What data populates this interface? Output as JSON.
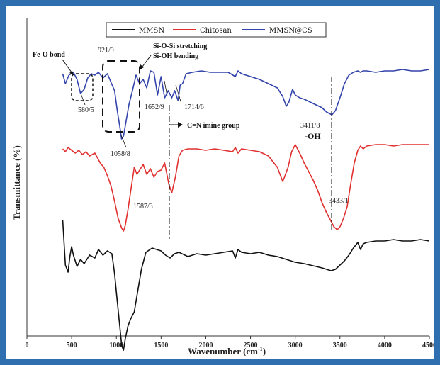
{
  "chart_data": {
    "type": "line",
    "xlabel": "Wavenumber (cm",
    "xlabel_sup": "-1",
    "xlabel_close": ")",
    "ylabel": "Transmittance (%)",
    "xlim": [
      0,
      4500
    ],
    "x_ticks": [
      "0",
      "500",
      "1000",
      "1500",
      "2000",
      "2500",
      "3000",
      "3500",
      "4000",
      "4500"
    ],
    "legend_position": "top",
    "grid": false,
    "series": [
      {
        "name": "MMSN",
        "color": "#111111",
        "x": [
          400,
          430,
          460,
          480,
          500,
          520,
          560,
          600,
          640,
          700,
          760,
          800,
          850,
          900,
          950,
          980,
          1000,
          1030,
          1060,
          1080,
          1100,
          1130,
          1160,
          1200,
          1240,
          1280,
          1330,
          1400,
          1500,
          1550,
          1600,
          1650,
          1700,
          1800,
          1900,
          2000,
          2100,
          2200,
          2300,
          2330,
          2360,
          2400,
          2500,
          2600,
          2700,
          2800,
          2900,
          3000,
          3100,
          3200,
          3300,
          3400,
          3450,
          3500,
          3550,
          3600,
          3650,
          3700,
          3730,
          3760,
          3800,
          3900,
          4000,
          4100,
          4200,
          4300,
          4400,
          4500
        ],
        "y": [
          10,
          74,
          84,
          62,
          48,
          60,
          76,
          66,
          72,
          60,
          64,
          52,
          60,
          54,
          58,
          86,
          112,
          150,
          188,
          194,
          178,
          160,
          150,
          140,
          110,
          80,
          56,
          50,
          54,
          60,
          64,
          58,
          56,
          62,
          58,
          60,
          58,
          56,
          54,
          64,
          52,
          56,
          58,
          56,
          60,
          62,
          66,
          70,
          72,
          75,
          78,
          82,
          80,
          74,
          68,
          60,
          50,
          42,
          52,
          44,
          42,
          40,
          40,
          38,
          40,
          40,
          38,
          40
        ]
      },
      {
        "name": "Chitosan",
        "color": "#e03030",
        "x": [
          400,
          430,
          460,
          500,
          540,
          580,
          620,
          660,
          700,
          760,
          820,
          860,
          900,
          940,
          980,
          1020,
          1060,
          1080,
          1100,
          1130,
          1160,
          1200,
          1230,
          1260,
          1300,
          1340,
          1380,
          1420,
          1460,
          1500,
          1540,
          1587,
          1620,
          1660,
          1700,
          1740,
          1800,
          1900,
          2000,
          2100,
          2200,
          2300,
          2330,
          2360,
          2400,
          2500,
          2600,
          2700,
          2800,
          2860,
          2880,
          2920,
          2960,
          3000,
          3050,
          3100,
          3150,
          3200,
          3250,
          3300,
          3350,
          3400,
          3433,
          3470,
          3500,
          3540,
          3580,
          3620,
          3660,
          3700,
          3730,
          3760,
          3800,
          3900,
          4000,
          4100,
          4200,
          4300,
          4400,
          4500
        ],
        "y": [
          10,
          14,
          8,
          12,
          16,
          12,
          18,
          14,
          20,
          16,
          30,
          36,
          48,
          62,
          84,
          108,
          122,
          126,
          118,
          96,
          70,
          36,
          46,
          40,
          32,
          46,
          38,
          50,
          42,
          40,
          30,
          60,
          72,
          50,
          20,
          12,
          10,
          10,
          12,
          10,
          12,
          14,
          8,
          16,
          10,
          12,
          14,
          20,
          36,
          56,
          50,
          36,
          14,
          4,
          16,
          30,
          42,
          54,
          68,
          86,
          100,
          112,
          120,
          124,
          120,
          108,
          92,
          60,
          30,
          12,
          6,
          10,
          6,
          4,
          4,
          6,
          4,
          4,
          4,
          4
        ]
      },
      {
        "name": "MMSN@CS",
        "color": "#3344aa",
        "x": [
          400,
          430,
          470,
          520,
          560,
          600,
          640,
          680,
          720,
          760,
          800,
          850,
          900,
          940,
          980,
          1010,
          1040,
          1058,
          1080,
          1110,
          1140,
          1180,
          1220,
          1260,
          1300,
          1340,
          1380,
          1420,
          1460,
          1500,
          1540,
          1580,
          1620,
          1652,
          1690,
          1714,
          1740,
          1780,
          1850,
          1950,
          2050,
          2150,
          2250,
          2330,
          2360,
          2400,
          2500,
          2600,
          2700,
          2800,
          2860,
          2900,
          2930,
          2970,
          3000,
          3050,
          3100,
          3200,
          3300,
          3350,
          3411,
          3450,
          3500,
          3550,
          3600,
          3650,
          3700,
          3730,
          3760,
          3800,
          3900,
          4000,
          4100,
          4200,
          4300,
          4400,
          4500
        ],
        "y": [
          6,
          20,
          8,
          4,
          14,
          34,
          28,
          12,
          6,
          8,
          4,
          12,
          6,
          18,
          30,
          58,
          82,
          98,
          94,
          72,
          50,
          30,
          8,
          20,
          14,
          26,
          2,
          4,
          36,
          10,
          40,
          30,
          40,
          30,
          44,
          22,
          20,
          6,
          4,
          2,
          4,
          4,
          4,
          10,
          2,
          6,
          10,
          14,
          20,
          26,
          38,
          52,
          46,
          28,
          36,
          40,
          42,
          48,
          54,
          60,
          64,
          58,
          40,
          20,
          8,
          4,
          2,
          4,
          2,
          2,
          4,
          2,
          2,
          0,
          2,
          2,
          0
        ]
      }
    ]
  },
  "annotations": {
    "fe_o": "Fe-O bond",
    "p921": "921/9",
    "si_o_si": "Si-O-Si stretching",
    "si_oh": "Si-OH bending",
    "p580": "580/5",
    "p1652": "1652/9",
    "p1714": "1714/6",
    "cn": "C=N imine group",
    "p3411": "3411/8",
    "oh": "-OH",
    "p1058": "1058/8",
    "p1587": "1587/3",
    "p3433": "3433/1"
  }
}
